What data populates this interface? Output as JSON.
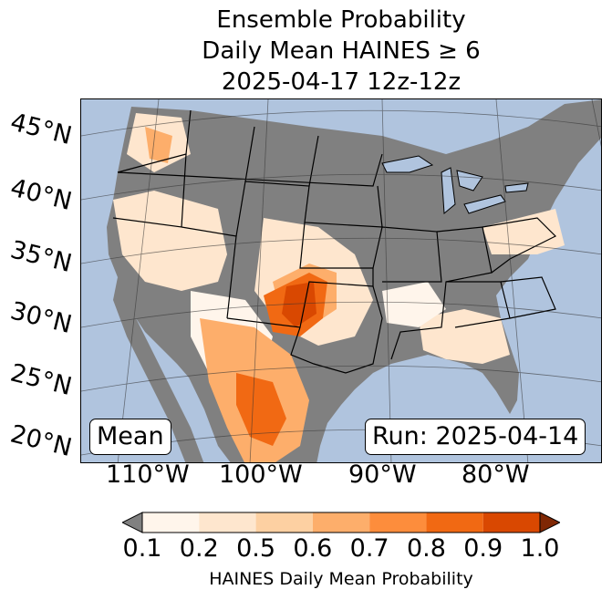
{
  "title": {
    "line1": "Ensemble Probability",
    "line2": "Daily Mean HAINES ≥ 6",
    "line3": "2025-04-17 12z-12z"
  },
  "map": {
    "lat_labels": [
      "45°N",
      "40°N",
      "35°N",
      "30°N",
      "25°N",
      "20°N"
    ],
    "lon_labels": [
      "110°W",
      "100°W",
      "90°W",
      "80°W"
    ],
    "stat_label": "Mean",
    "run_label": "Run: 2025-04-14",
    "colors": {
      "ocean": "#b0c4de",
      "land_below": "#808080",
      "lakes": "#b0c4de"
    }
  },
  "colorbar": {
    "label": "HAINES Daily Mean Probability",
    "ticks": [
      "0.1",
      "0.2",
      "0.5",
      "0.6",
      "0.7",
      "0.8",
      "0.9",
      "1.0"
    ],
    "bins": [
      {
        "from": 0.1,
        "to": 0.2,
        "color": "#fff5eb"
      },
      {
        "from": 0.2,
        "to": 0.5,
        "color": "#fee6ce"
      },
      {
        "from": 0.5,
        "to": 0.6,
        "color": "#fdd0a2"
      },
      {
        "from": 0.6,
        "to": 0.7,
        "color": "#fdae6b"
      },
      {
        "from": 0.7,
        "to": 0.8,
        "color": "#fd8d3c"
      },
      {
        "from": 0.8,
        "to": 0.9,
        "color": "#f16913"
      },
      {
        "from": 0.9,
        "to": 1.0,
        "color": "#d94801"
      }
    ],
    "under_color": "#808080",
    "over_color": "#7f2704"
  }
}
